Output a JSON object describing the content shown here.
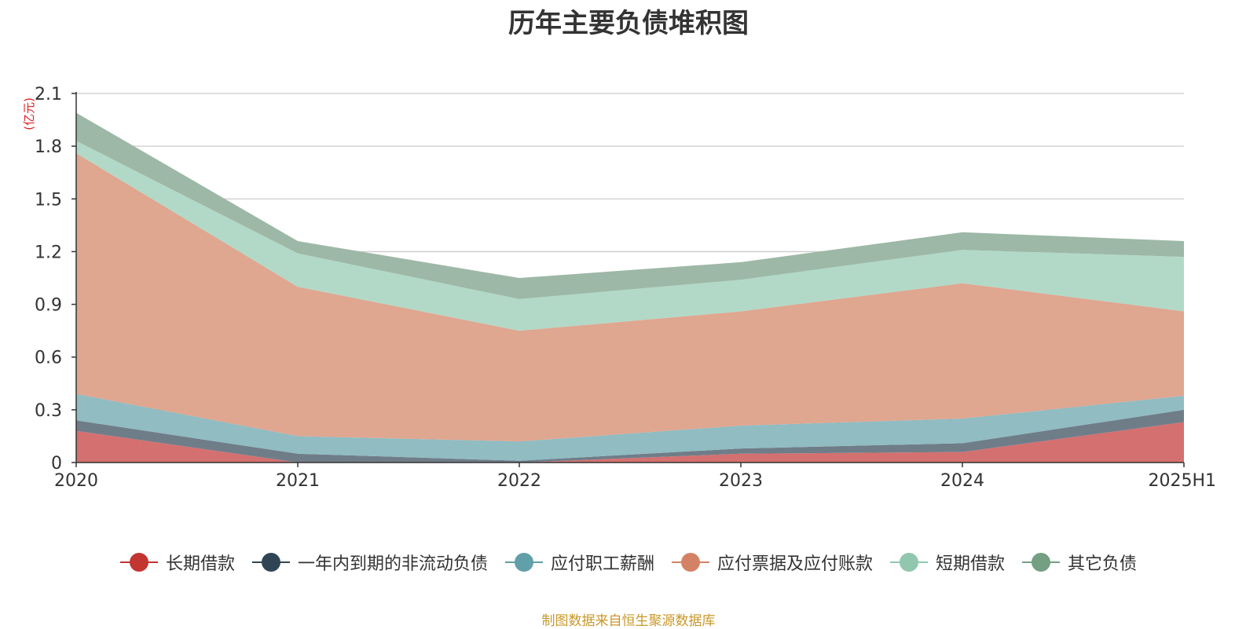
{
  "title": "历年主要负债堆积图",
  "source_note": "制图数据来自恒生聚源数据库",
  "chart_data": {
    "type": "area",
    "stacked": true,
    "title": "历年主要负债堆积图",
    "unit_label": "(亿元)",
    "categories": [
      "2020",
      "2021",
      "2022",
      "2023",
      "2024",
      "2025H1"
    ],
    "ylim": [
      0,
      2.1
    ],
    "yticks": [
      0,
      0.3,
      0.6,
      0.9,
      1.2,
      1.5,
      1.8,
      2.1
    ],
    "ytick_labels": [
      "0",
      "0.3",
      "0.6",
      "0.9",
      "1.2",
      "1.5",
      "1.8",
      "2.1"
    ],
    "grid": true,
    "legend_position": "bottom",
    "series": [
      {
        "name": "长期借款",
        "color": "#c23531",
        "area_color": "#d4706f",
        "values": [
          0.18,
          0.0,
          0.0,
          0.05,
          0.06,
          0.23
        ]
      },
      {
        "name": "一年内到期的非流动负债",
        "color": "#2f4554",
        "area_color": "#6f7d89",
        "values": [
          0.06,
          0.05,
          0.01,
          0.03,
          0.05,
          0.07
        ]
      },
      {
        "name": "应付职工薪酬",
        "color": "#61a0a8",
        "area_color": "#90bcc2",
        "values": [
          0.15,
          0.1,
          0.11,
          0.13,
          0.14,
          0.08
        ]
      },
      {
        "name": "应付票据及应付账款",
        "color": "#d48265",
        "area_color": "#dfa690",
        "values": [
          1.37,
          0.85,
          0.63,
          0.65,
          0.77,
          0.48
        ]
      },
      {
        "name": "短期借款",
        "color": "#91c7ae",
        "area_color": "#b2d9c7",
        "values": [
          0.07,
          0.19,
          0.18,
          0.18,
          0.19,
          0.31
        ]
      },
      {
        "name": "其它负债",
        "color": "#749f83",
        "area_color": "#9db8a6",
        "values": [
          0.16,
          0.07,
          0.12,
          0.1,
          0.1,
          0.09
        ]
      }
    ]
  }
}
